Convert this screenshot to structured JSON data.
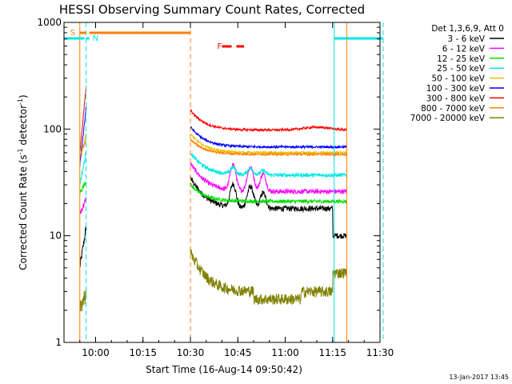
{
  "chart_data": {
    "type": "line",
    "title": "HESSI Observing Summary Count Rates, Corrected",
    "xlabel": "Start Time (16-Aug-14 09:50:42)",
    "ylabel_main": "Corrected Count Rate (s",
    "ylabel_mid": " detector",
    "ylabel_close": ")",
    "ylabel_sup": "-1",
    "yscale": "log",
    "ylim": [
      1,
      1000
    ],
    "xlim_minutes": [
      0,
      100
    ],
    "x_ticks": [
      {
        "m": 10,
        "label": "10:00"
      },
      {
        "m": 25,
        "label": "10:15"
      },
      {
        "m": 40,
        "label": "10:30"
      },
      {
        "m": 55,
        "label": "10:45"
      },
      {
        "m": 70,
        "label": "11:00"
      },
      {
        "m": 85,
        "label": "11:15"
      },
      {
        "m": 100,
        "label": "11:30"
      }
    ],
    "y_ticks": [
      {
        "v": 1,
        "label": "1"
      },
      {
        "v": 10,
        "label": "10"
      },
      {
        "v": 100,
        "label": "100"
      },
      {
        "v": 1000,
        "label": "1000"
      }
    ],
    "legend_header": "Det 1,3,6,9, Att 0",
    "legend_position": "right",
    "series": [
      {
        "name": "3 - 6 keV",
        "color": "#000000",
        "base": 18,
        "pre": [
          5,
          12
        ],
        "peak": 35,
        "noise": 0.06
      },
      {
        "name": "6 - 12 keV",
        "color": "#ff00ff",
        "base": 26,
        "pre": [
          16,
          22
        ],
        "peak": 48,
        "noise": 0.05
      },
      {
        "name": "12 - 25 keV",
        "color": "#00e000",
        "base": 21,
        "pre": [
          25,
          33
        ],
        "peak": 30,
        "noise": 0.04
      },
      {
        "name": "25 - 50 keV",
        "color": "#00e5e5",
        "base": 37,
        "pre": [
          30,
          60
        ],
        "peak": 60,
        "noise": 0.04
      },
      {
        "name": "50 - 100 keV",
        "color": "#e8c000",
        "base": 60,
        "pre": [
          50,
          90
        ],
        "peak": 90,
        "noise": 0.025
      },
      {
        "name": "100 - 300 keV",
        "color": "#0000ff",
        "base": 68,
        "pre": [
          45,
          160
        ],
        "peak": 105,
        "noise": 0.025
      },
      {
        "name": "300 - 800 keV",
        "color": "#ff0000",
        "base": 98,
        "pre": [
          60,
          250
        ],
        "peak": 150,
        "noise": 0.025
      },
      {
        "name": "800 - 7000 keV",
        "color": "#ff8000",
        "base": 58,
        "pre": [
          55,
          80
        ],
        "peak": 80,
        "noise": 0.025
      },
      {
        "name": "7000 - 20000 keV",
        "color": "#808000",
        "base": 3,
        "pre": [
          2,
          3
        ],
        "peak": 7,
        "noise": 0.12
      }
    ],
    "segments": [
      {
        "label": "",
        "start": 0,
        "end": 6.5,
        "color": "#00e5e5"
      },
      {
        "label": "S",
        "start": 5,
        "end": 7,
        "color": "#ff8000"
      },
      {
        "label": "N",
        "start": 7,
        "end": 8,
        "color": "#00e5e5"
      },
      {
        "label": "",
        "start": 8,
        "end": 40,
        "color": "#ff8000"
      },
      {
        "label": "F",
        "start": 50,
        "end": 57,
        "color": "#ff0000"
      },
      {
        "label": "",
        "start": 85.5,
        "end": 101,
        "color": "#00e5e5"
      }
    ],
    "event_lines": [
      {
        "m": 0,
        "color": "#00e5e5",
        "style": "solid"
      },
      {
        "m": 5,
        "color": "#ff8000",
        "style": "solid"
      },
      {
        "m": 7,
        "color": "#00e5e5",
        "style": "dashed"
      },
      {
        "m": 40,
        "color": "#ff8000",
        "style": "dashed"
      },
      {
        "m": 85.5,
        "color": "#00e5e5",
        "style": "solid"
      },
      {
        "m": 101,
        "color": "#00e5e5",
        "style": "dashed"
      },
      {
        "m": 89.5,
        "color": "#ff8000",
        "style": "solid"
      }
    ],
    "data_windows": [
      [
        5,
        7
      ],
      [
        40,
        89.5
      ]
    ]
  },
  "footer": {
    "timestamp": "13-Jan-2017 13:45"
  }
}
